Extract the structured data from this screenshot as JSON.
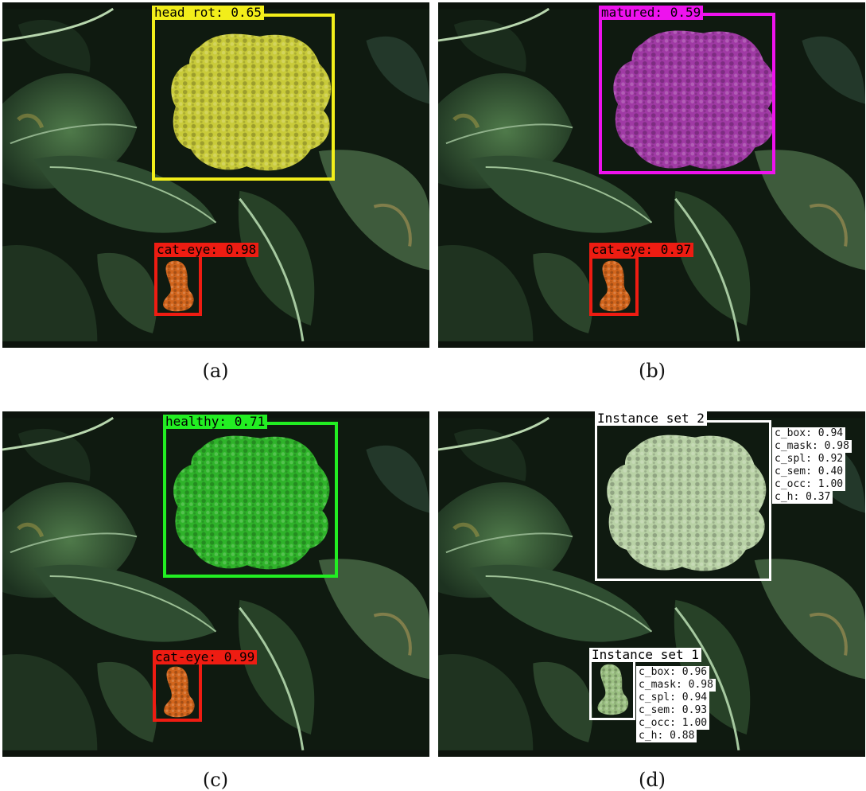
{
  "colors": {
    "head_rot": "#f2ee1a",
    "matured": "#ee12ee",
    "healthy": "#22ee22",
    "cat_eye": "#ee1c12",
    "instance": "#ffffff"
  },
  "panels": [
    {
      "caption": "(a)",
      "objects": [
        {
          "label": "head rot: 0.65",
          "color_key": "head_rot"
        },
        {
          "label": "cat-eye: 0.98",
          "color_key": "cat_eye"
        }
      ]
    },
    {
      "caption": "(b)",
      "objects": [
        {
          "label": "matured: 0.59",
          "color_key": "matured"
        },
        {
          "label": "cat-eye: 0.97",
          "color_key": "cat_eye"
        }
      ]
    },
    {
      "caption": "(c)",
      "objects": [
        {
          "label": "healthy: 0.71",
          "color_key": "healthy"
        },
        {
          "label": "cat-eye: 0.99",
          "color_key": "cat_eye"
        }
      ]
    },
    {
      "caption": "(d)",
      "instances": [
        {
          "label": "Instance set 2",
          "metrics": [
            "c_box: 0.94",
            "c_mask: 0.98",
            "c_spl: 0.92",
            "c_sem: 0.40",
            "c_occ: 1.00",
            "c_h: 0.37"
          ]
        },
        {
          "label": "Instance set 1",
          "metrics": [
            "c_box: 0.96",
            "c_mask: 0.98",
            "c_spl: 0.94",
            "c_sem: 0.93",
            "c_occ: 1.00",
            "c_h: 0.88"
          ]
        }
      ]
    }
  ]
}
